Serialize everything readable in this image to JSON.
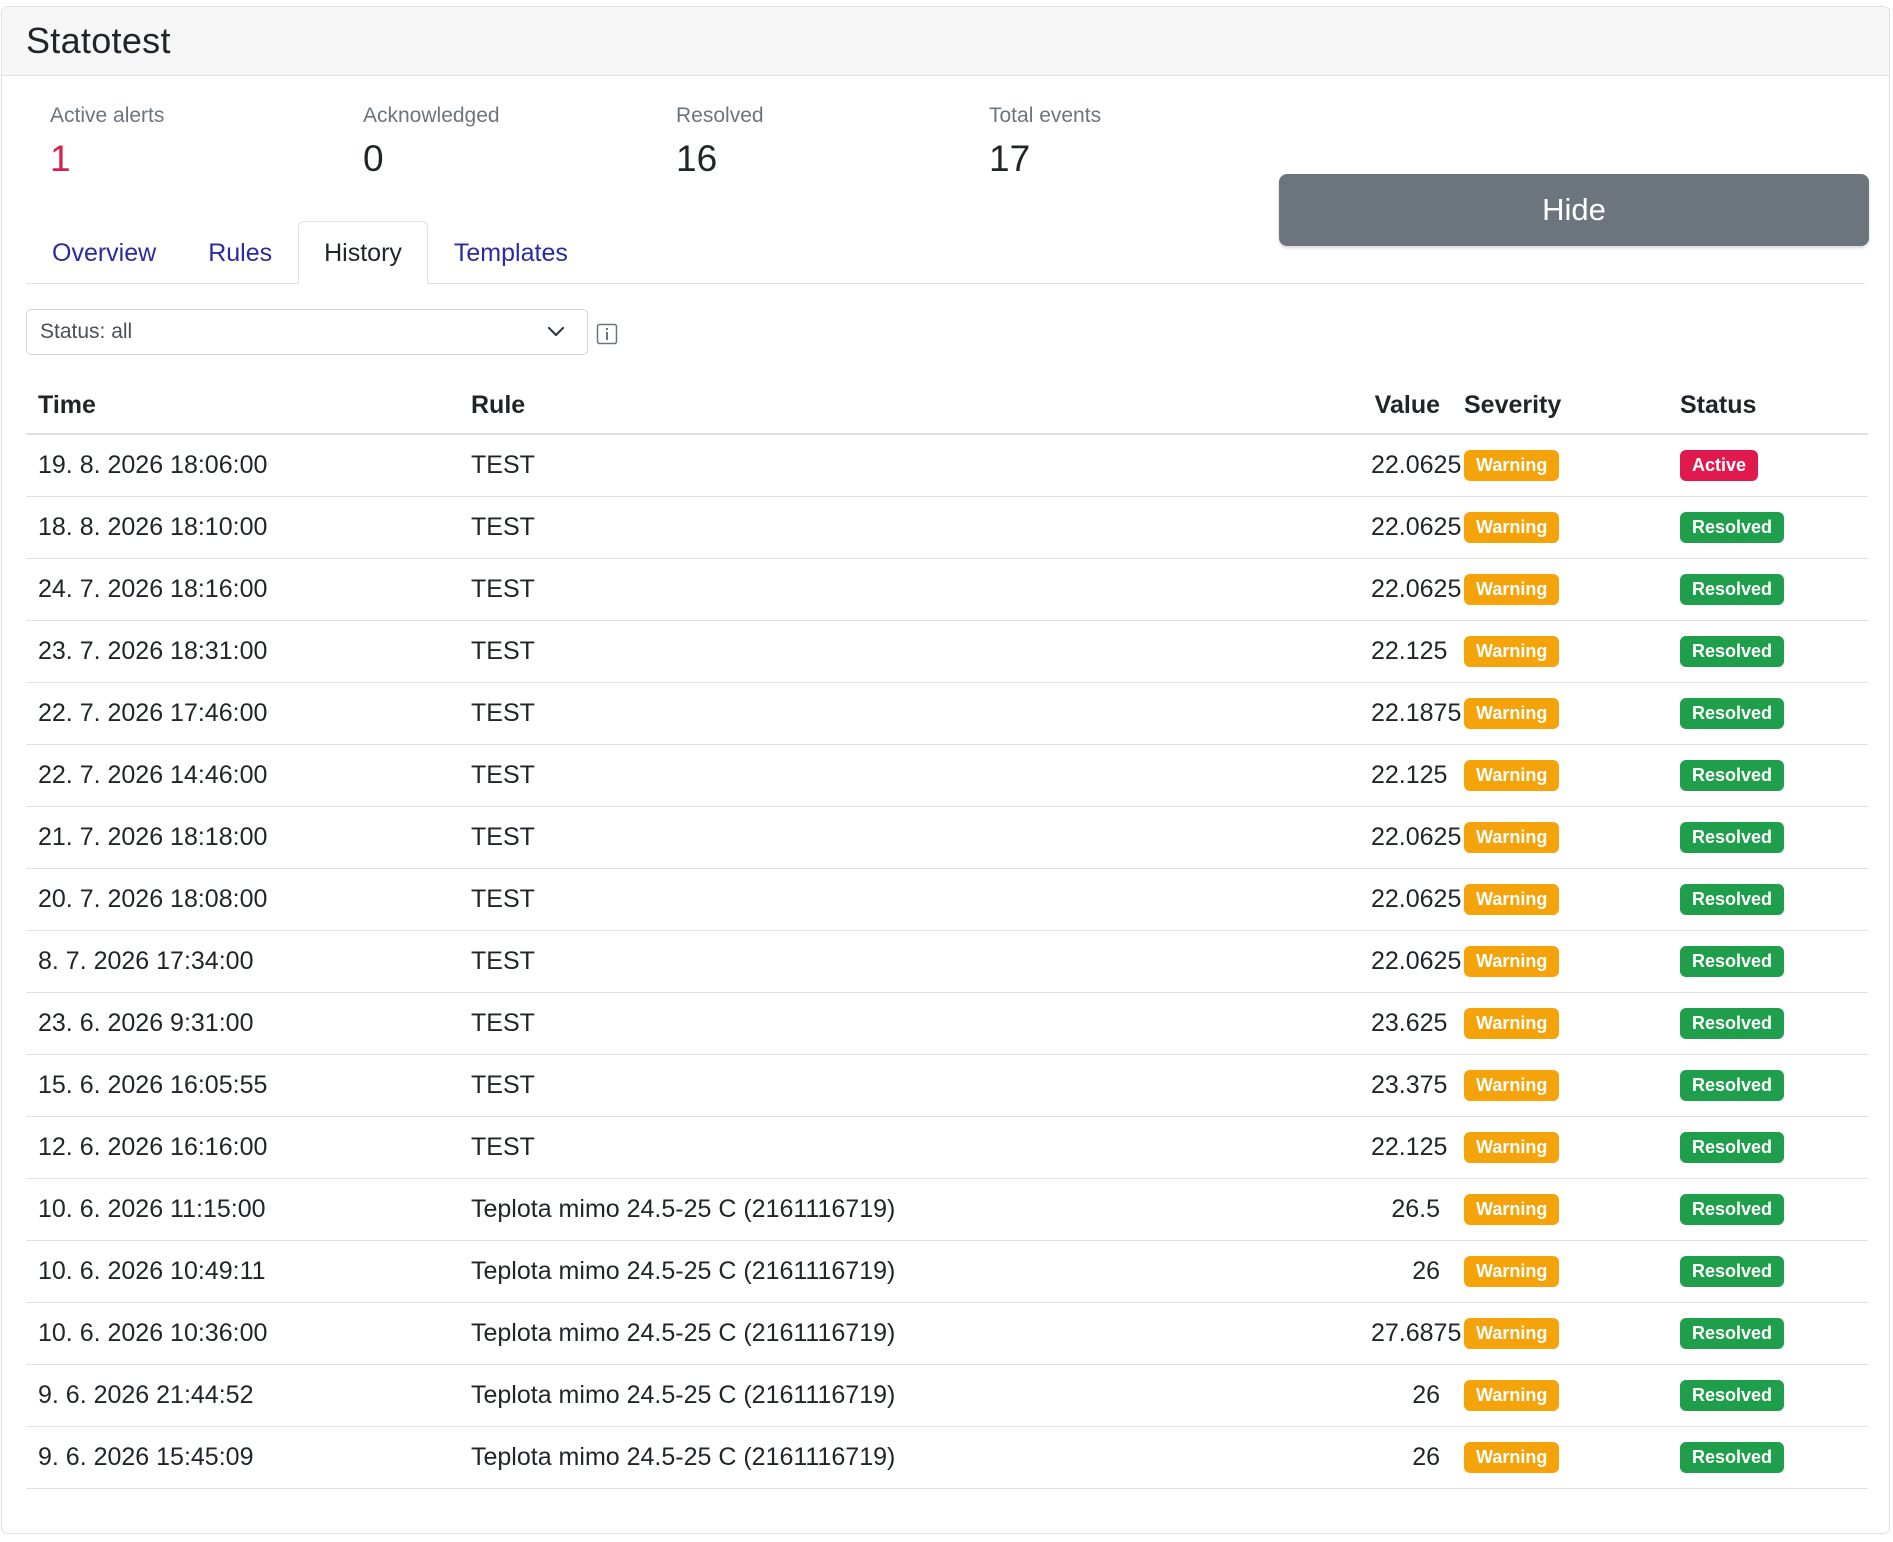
{
  "title": "Statotest",
  "stats": [
    {
      "label": "Active alerts",
      "value": "1"
    },
    {
      "label": "Acknowledged",
      "value": "0"
    },
    {
      "label": "Resolved",
      "value": "16"
    },
    {
      "label": "Total events",
      "value": "17"
    }
  ],
  "hide_button": "Hide",
  "tabs": [
    {
      "label": "Overview"
    },
    {
      "label": "Rules"
    },
    {
      "label": "History"
    },
    {
      "label": "Templates"
    }
  ],
  "active_tab": "History",
  "filter": {
    "label": "Status: all",
    "icon": "chevron-down-icon",
    "info_icon": "info-icon"
  },
  "table": {
    "headers": {
      "time": "Time",
      "rule": "Rule",
      "value": "Value",
      "severity": "Severity",
      "status": "Status"
    },
    "rows": [
      {
        "time": "19. 8. 2026 18:06:00",
        "rule": "TEST",
        "value": "22.0625",
        "severity": "Warning",
        "status": "Active"
      },
      {
        "time": "18. 8. 2026 18:10:00",
        "rule": "TEST",
        "value": "22.0625",
        "severity": "Warning",
        "status": "Resolved"
      },
      {
        "time": "24. 7. 2026 18:16:00",
        "rule": "TEST",
        "value": "22.0625",
        "severity": "Warning",
        "status": "Resolved"
      },
      {
        "time": "23. 7. 2026 18:31:00",
        "rule": "TEST",
        "value": "22.125",
        "severity": "Warning",
        "status": "Resolved"
      },
      {
        "time": "22. 7. 2026 17:46:00",
        "rule": "TEST",
        "value": "22.1875",
        "severity": "Warning",
        "status": "Resolved"
      },
      {
        "time": "22. 7. 2026 14:46:00",
        "rule": "TEST",
        "value": "22.125",
        "severity": "Warning",
        "status": "Resolved"
      },
      {
        "time": "21. 7. 2026 18:18:00",
        "rule": "TEST",
        "value": "22.0625",
        "severity": "Warning",
        "status": "Resolved"
      },
      {
        "time": "20. 7. 2026 18:08:00",
        "rule": "TEST",
        "value": "22.0625",
        "severity": "Warning",
        "status": "Resolved"
      },
      {
        "time": "8. 7. 2026 17:34:00",
        "rule": "TEST",
        "value": "22.0625",
        "severity": "Warning",
        "status": "Resolved"
      },
      {
        "time": "23. 6. 2026 9:31:00",
        "rule": "TEST",
        "value": "23.625",
        "severity": "Warning",
        "status": "Resolved"
      },
      {
        "time": "15. 6. 2026 16:05:55",
        "rule": "TEST",
        "value": "23.375",
        "severity": "Warning",
        "status": "Resolved"
      },
      {
        "time": "12. 6. 2026 16:16:00",
        "rule": "TEST",
        "value": "22.125",
        "severity": "Warning",
        "status": "Resolved"
      },
      {
        "time": "10. 6. 2026 11:15:00",
        "rule": "Teplota mimo 24.5-25 C (2161116719)",
        "value": "26.5",
        "severity": "Warning",
        "status": "Resolved"
      },
      {
        "time": "10. 6. 2026 10:49:11",
        "rule": "Teplota mimo 24.5-25 C (2161116719)",
        "value": "26",
        "severity": "Warning",
        "status": "Resolved"
      },
      {
        "time": "10. 6. 2026 10:36:00",
        "rule": "Teplota mimo 24.5-25 C (2161116719)",
        "value": "27.6875",
        "severity": "Warning",
        "status": "Resolved"
      },
      {
        "time": "9. 6. 2026 21:44:52",
        "rule": "Teplota mimo 24.5-25 C (2161116719)",
        "value": "26",
        "severity": "Warning",
        "status": "Resolved"
      },
      {
        "time": "9. 6. 2026 15:45:09",
        "rule": "Teplota mimo 24.5-25 C (2161116719)",
        "value": "26",
        "severity": "Warning",
        "status": "Resolved"
      }
    ]
  },
  "colors": {
    "active_alerts_value": "#d6204e",
    "tab_link": "#2c2aa0",
    "hide_button_bg": "#6c757d",
    "badge_warning": "#f5a30a",
    "badge_resolved": "#1f9e4b",
    "badge_active": "#e0194f"
  }
}
